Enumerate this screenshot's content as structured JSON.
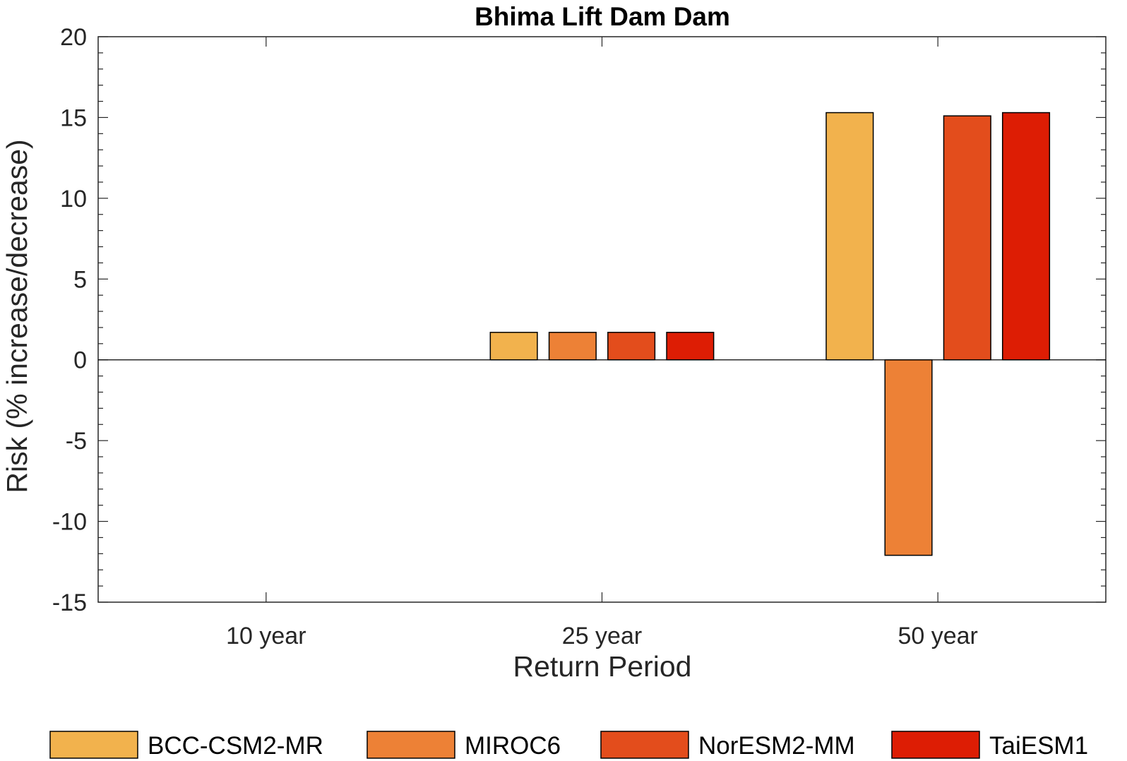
{
  "chart_data": {
    "type": "bar",
    "title": "Bhima Lift Dam Dam",
    "xlabel": "Return Period",
    "ylabel": "Risk (% increase/decrease)",
    "categories": [
      "10 year",
      "25 year",
      "50 year"
    ],
    "ylim": [
      -15,
      20
    ],
    "yticks": [
      -15,
      -10,
      -5,
      0,
      5,
      10,
      15,
      20
    ],
    "ytick_labels": [
      "-15",
      "-10",
      "-5",
      "0",
      "5",
      "10",
      "15",
      "20"
    ],
    "minor_ticks": true,
    "grid": false,
    "legend_position": "bottom",
    "series": [
      {
        "name": "BCC-CSM2-MR",
        "color": "#F2B24D",
        "values": [
          0,
          1.7,
          15.3
        ]
      },
      {
        "name": "MIROC6",
        "color": "#ED8136",
        "values": [
          0,
          1.7,
          -12.1
        ]
      },
      {
        "name": "NorESM2-MM",
        "color": "#E34D1C",
        "values": [
          0,
          1.7,
          15.1
        ]
      },
      {
        "name": "TaiESM1",
        "color": "#DD1D04",
        "values": [
          0,
          1.7,
          15.3
        ]
      }
    ]
  }
}
